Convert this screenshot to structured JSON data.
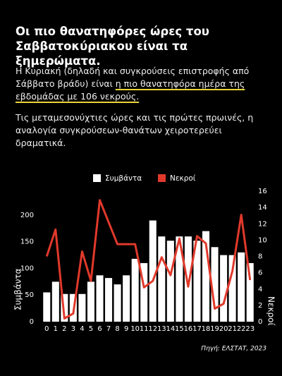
{
  "header": {
    "title": "Οι πιο θανατηφόρες ώρες του Σαββατοκύριακου είναι τα ξημερώματα.",
    "paragraphs": [
      [
        "Η Κυριακή (δηλαδή και συγκρούσεις επιστροφής από Σάββατο βράδυ) είναι ",
        "η πιο θανατηφόρα ημέρα της εβδομάδας με 106 νεκρούς."
      ],
      [
        "Τις μεταμεσονύχτιες ώρες και τις πρώτες πρωινές, η αναλογία συγκρούσεων-θανάτων χειροτερεύει δραματικά."
      ]
    ]
  },
  "chart_data": {
    "type": "bar_line",
    "categories": [
      "0",
      "1",
      "2",
      "3",
      "4",
      "5",
      "6",
      "7",
      "8",
      "9",
      "10",
      "11",
      "12",
      "13",
      "14",
      "15",
      "16",
      "17",
      "18",
      "19",
      "20",
      "21",
      "22",
      "23"
    ],
    "series": [
      {
        "name": "Συμβάντα",
        "type": "bar",
        "color": "#ffffff",
        "values": [
          55,
          75,
          52,
          52,
          52,
          75,
          87,
          82,
          70,
          87,
          118,
          110,
          190,
          160,
          152,
          160,
          160,
          152,
          170,
          140,
          125,
          125,
          130,
          110
        ]
      },
      {
        "name": "Νεκροί",
        "type": "line",
        "axis": "y2",
        "color": "#e0392b",
        "values": [
          8,
          11.3,
          0.4,
          1,
          8.6,
          5,
          14.9,
          12.2,
          9.5,
          9.5,
          9.5,
          4.2,
          5,
          7.9,
          5.7,
          10.2,
          4.3,
          10.5,
          9.6,
          1.6,
          2.2,
          6.2,
          13.1,
          5.1
        ]
      }
    ],
    "ylabel": "Συμβάντα",
    "y2label": "Νεκροί",
    "ylim": [
      0,
      245
    ],
    "yticks": [
      0,
      50,
      100,
      150,
      200
    ],
    "y2lim": [
      0,
      16
    ],
    "y2ticks": [
      0,
      2,
      4,
      6,
      8,
      10,
      12,
      14,
      16
    ],
    "source": "Πηγή: ΕΛΣΤΑΤ, 2023"
  }
}
